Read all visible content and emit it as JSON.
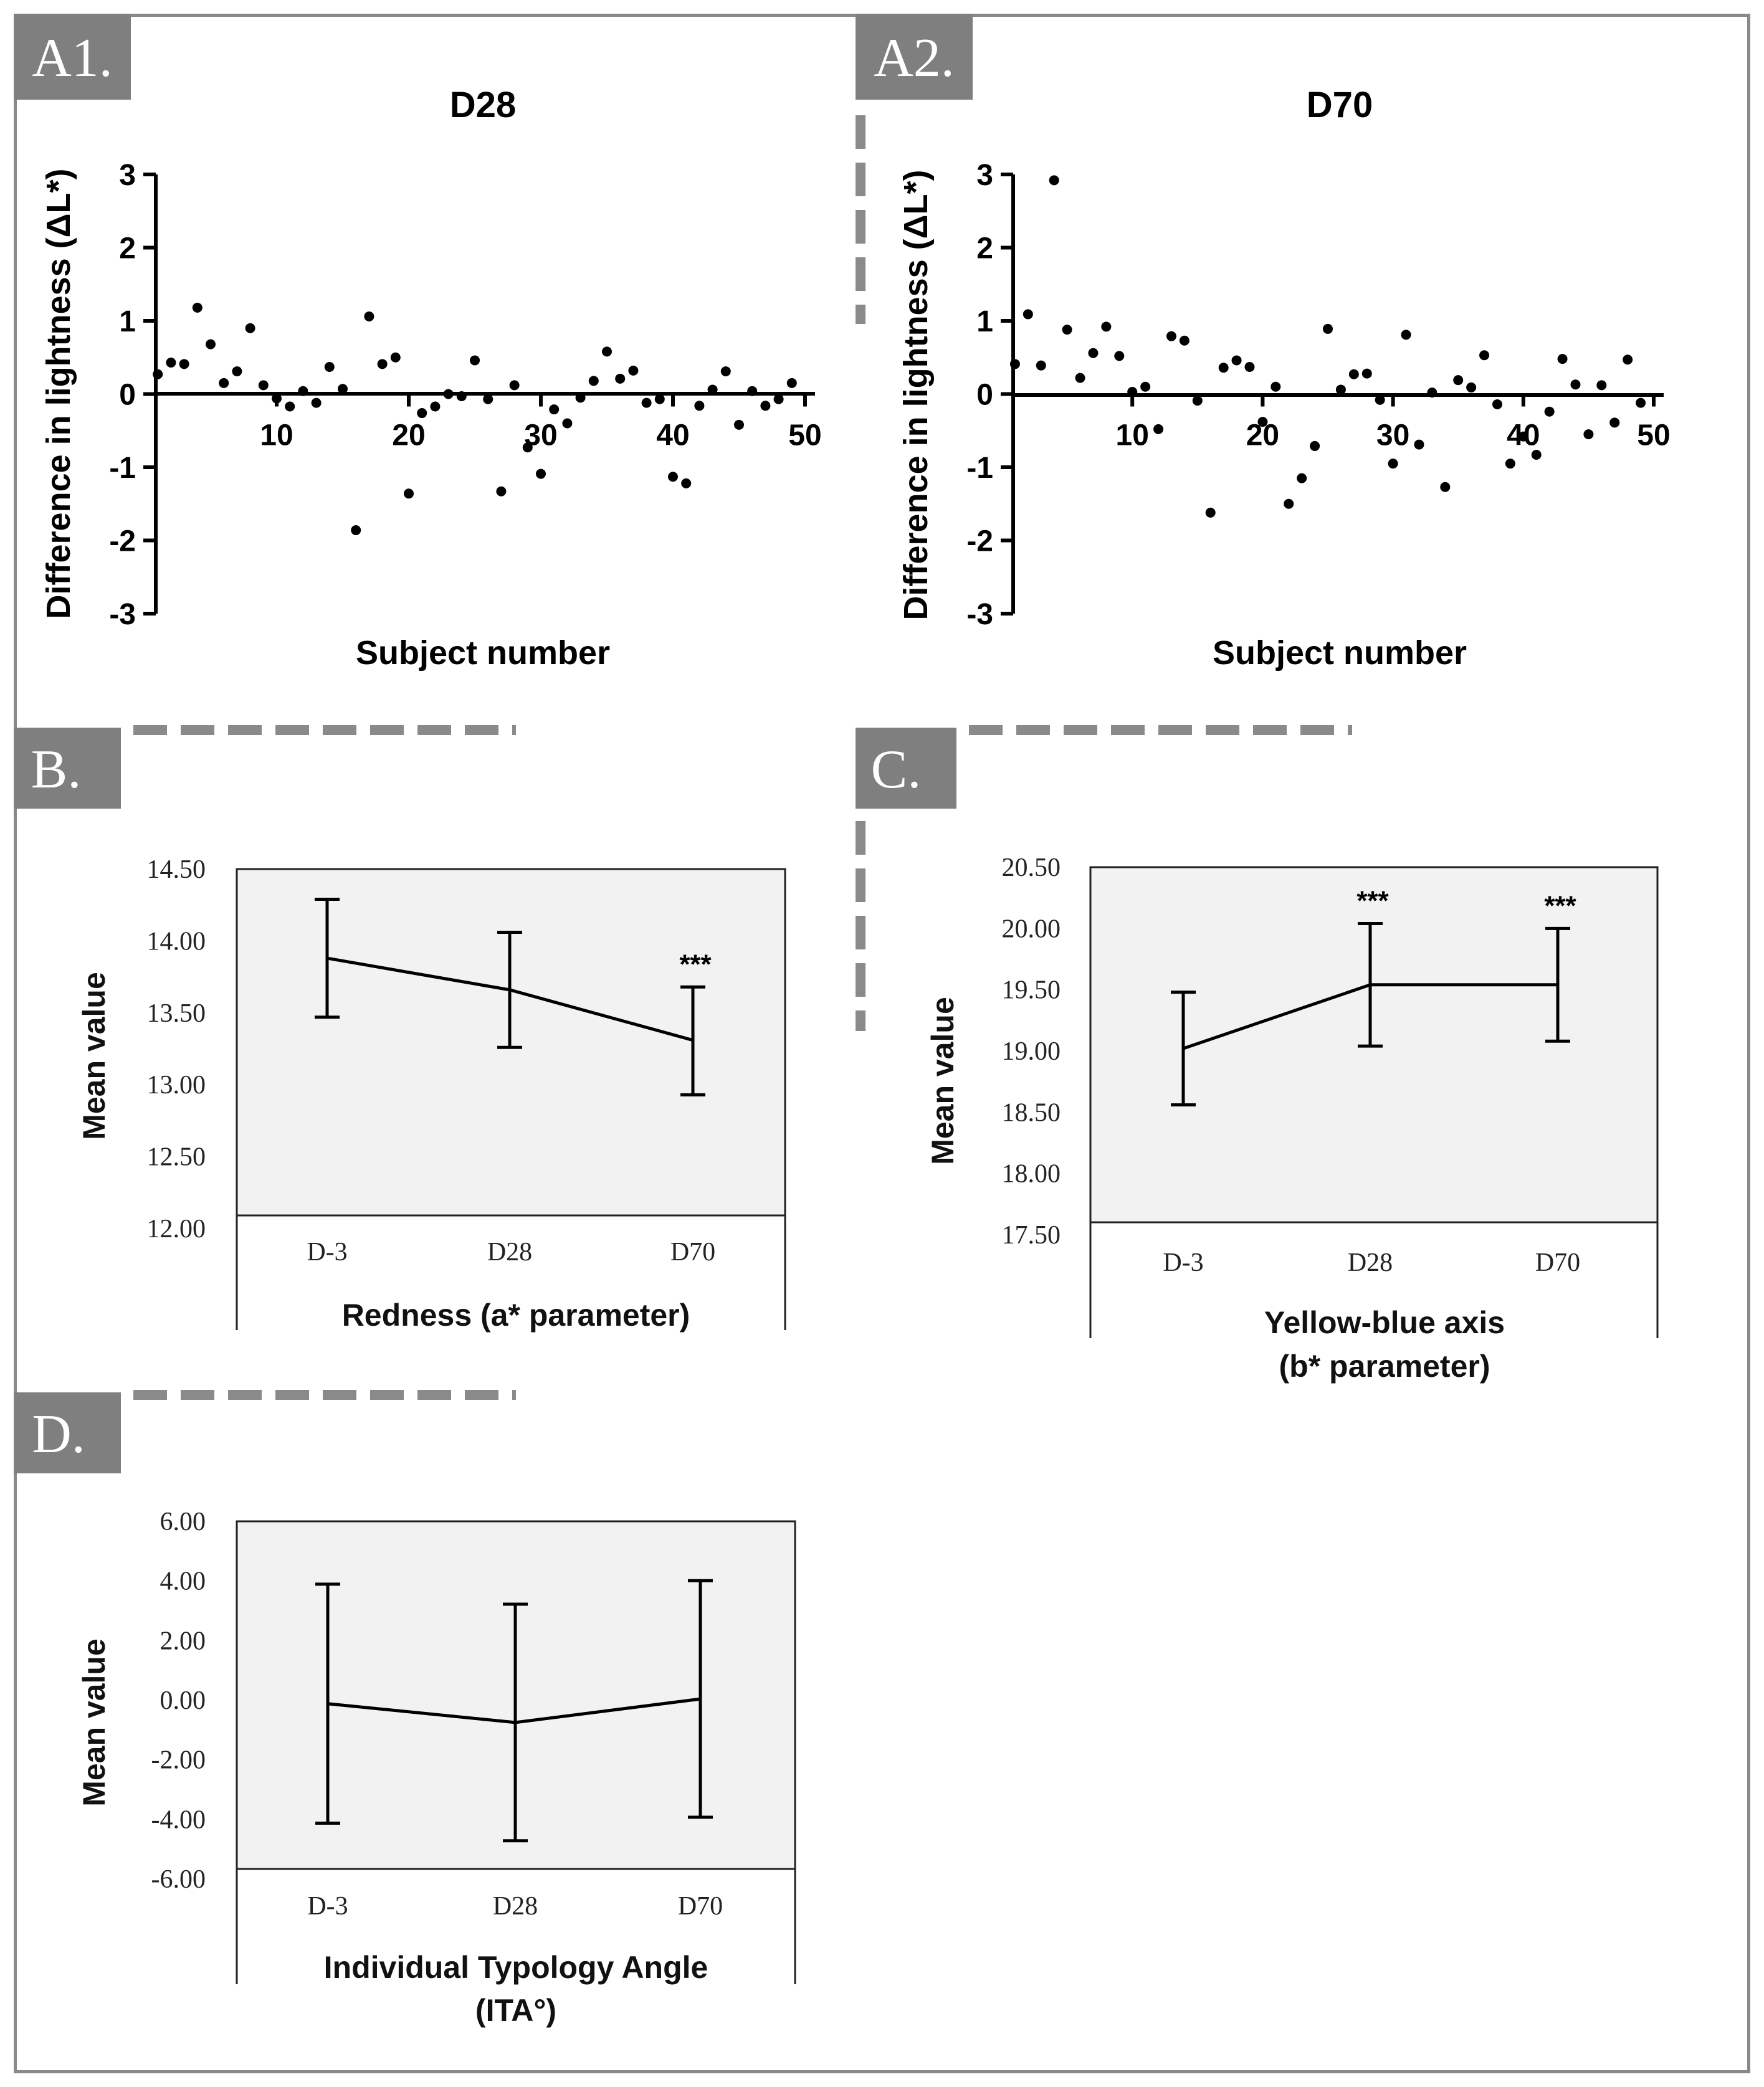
{
  "panels": {
    "a1": {
      "label": "A1.",
      "title": "D28"
    },
    "a2": {
      "label": "A2.",
      "title": "D70"
    },
    "b": {
      "label": "B."
    },
    "c": {
      "label": "C."
    },
    "d": {
      "label": "D."
    }
  },
  "colors": {
    "label_bg": "#7f7f7f",
    "plot_bg": "#f2f2f2",
    "frame": "#8a8a8a",
    "dash": "#8a8a8a"
  },
  "chart_data": [
    {
      "id": "a1",
      "type": "scatter",
      "title": "D28",
      "xlabel": "Subject number",
      "ylabel": "Difference in lightness (ΔL*)",
      "xlim": [
        0,
        50
      ],
      "ylim": [
        -3,
        3
      ],
      "xticks": [
        "10",
        "20",
        "30",
        "40",
        "50"
      ],
      "yticks": [
        "3",
        "2",
        "1",
        "0",
        "-1",
        "-2",
        "-3"
      ],
      "points": [
        [
          1,
          0.27
        ],
        [
          2,
          0.43
        ],
        [
          3,
          0.41
        ],
        [
          4,
          1.18
        ],
        [
          5,
          0.68
        ],
        [
          6,
          0.15
        ],
        [
          7,
          0.31
        ],
        [
          8,
          0.9
        ],
        [
          9,
          0.12
        ],
        [
          10,
          -0.06
        ],
        [
          11,
          -0.17
        ],
        [
          12,
          0.04
        ],
        [
          13,
          -0.12
        ],
        [
          14,
          0.37
        ],
        [
          15,
          0.07
        ],
        [
          16,
          -1.86
        ],
        [
          17,
          1.06
        ],
        [
          18,
          0.41
        ],
        [
          19,
          0.5
        ],
        [
          20,
          -1.36
        ],
        [
          21,
          -0.26
        ],
        [
          22,
          -0.17
        ],
        [
          23,
          0.0
        ],
        [
          24,
          -0.03
        ],
        [
          25,
          0.46
        ],
        [
          26,
          -0.07
        ],
        [
          27,
          -1.33
        ],
        [
          28,
          0.12
        ],
        [
          29,
          -0.73
        ],
        [
          30,
          -1.09
        ],
        [
          31,
          -0.21
        ],
        [
          32,
          -0.4
        ],
        [
          33,
          -0.05
        ],
        [
          34,
          0.18
        ],
        [
          35,
          0.58
        ],
        [
          36,
          0.21
        ],
        [
          37,
          0.32
        ],
        [
          38,
          -0.12
        ],
        [
          39,
          -0.07
        ],
        [
          40,
          -1.13
        ],
        [
          41,
          -1.22
        ],
        [
          42,
          -0.16
        ],
        [
          43,
          0.06
        ],
        [
          44,
          0.31
        ],
        [
          45,
          -0.42
        ],
        [
          46,
          0.04
        ],
        [
          47,
          -0.16
        ],
        [
          48,
          -0.07
        ],
        [
          49,
          0.15
        ]
      ]
    },
    {
      "id": "a2",
      "type": "scatter",
      "title": "D70",
      "xlabel": "Subject number",
      "ylabel": "Difference in lightness (ΔL*)",
      "xlim": [
        0,
        50
      ],
      "ylim": [
        -3,
        3
      ],
      "xticks": [
        "10",
        "20",
        "30",
        "40",
        "50"
      ],
      "yticks": [
        "3",
        "2",
        "1",
        "0",
        "-1",
        "-2",
        "-3"
      ],
      "points": [
        [
          1,
          0.41
        ],
        [
          2,
          1.09
        ],
        [
          3,
          0.39
        ],
        [
          4,
          2.92
        ],
        [
          5,
          0.88
        ],
        [
          6,
          0.22
        ],
        [
          7,
          0.56
        ],
        [
          8,
          0.92
        ],
        [
          9,
          0.52
        ],
        [
          10,
          0.03
        ],
        [
          11,
          0.1
        ],
        [
          12,
          -0.48
        ],
        [
          13,
          0.79
        ],
        [
          14,
          0.73
        ],
        [
          15,
          -0.09
        ],
        [
          16,
          -1.62
        ],
        [
          17,
          0.36
        ],
        [
          18,
          0.46
        ],
        [
          19,
          0.37
        ],
        [
          20,
          -0.38
        ],
        [
          21,
          0.1
        ],
        [
          22,
          -1.5
        ],
        [
          23,
          -1.15
        ],
        [
          24,
          -0.71
        ],
        [
          25,
          0.89
        ],
        [
          26,
          0.06
        ],
        [
          27,
          0.27
        ],
        [
          28,
          0.28
        ],
        [
          29,
          -0.08
        ],
        [
          30,
          -0.95
        ],
        [
          31,
          0.81
        ],
        [
          32,
          -0.69
        ],
        [
          33,
          0.02
        ],
        [
          34,
          -1.27
        ],
        [
          35,
          0.19
        ],
        [
          36,
          0.09
        ],
        [
          37,
          0.53
        ],
        [
          38,
          -0.14
        ],
        [
          39,
          -0.95
        ],
        [
          40,
          -0.58
        ],
        [
          41,
          -0.83
        ],
        [
          42,
          -0.24
        ],
        [
          43,
          0.48
        ],
        [
          44,
          0.13
        ],
        [
          45,
          -0.55
        ],
        [
          46,
          0.12
        ],
        [
          47,
          -0.39
        ],
        [
          48,
          0.47
        ],
        [
          49,
          -0.12
        ]
      ]
    },
    {
      "id": "b",
      "type": "line",
      "xlabel": [
        "Redness (a* parameter)"
      ],
      "ylabel": "Mean value",
      "categories": [
        "D-3",
        "D28",
        "D70"
      ],
      "ylim": [
        12.0,
        14.5
      ],
      "yticks": [
        "14.50",
        "14.00",
        "13.50",
        "13.00",
        "12.50",
        "12.00"
      ],
      "values": [
        13.88,
        13.66,
        13.31
      ],
      "err_upper": [
        14.29,
        14.06,
        13.68
      ],
      "err_lower": [
        13.47,
        13.26,
        12.93
      ],
      "significance": [
        "",
        "",
        "***"
      ]
    },
    {
      "id": "c",
      "type": "line",
      "xlabel": [
        "Yellow-blue axis",
        "(b* parameter)"
      ],
      "ylabel": "Mean value",
      "categories": [
        "D-3",
        "D28",
        "D70"
      ],
      "ylim": [
        17.5,
        20.5
      ],
      "yticks": [
        "20.50",
        "20.00",
        "19.50",
        "19.00",
        "18.50",
        "18.00",
        "17.50"
      ],
      "values": [
        19.02,
        19.54,
        19.54
      ],
      "err_upper": [
        19.48,
        20.04,
        20.0
      ],
      "err_lower": [
        18.56,
        19.04,
        19.08
      ],
      "significance": [
        "",
        "***",
        "***"
      ]
    },
    {
      "id": "d",
      "type": "line",
      "xlabel": [
        "Individual Typology Angle",
        "(ITA°)"
      ],
      "ylabel": "Mean value",
      "categories": [
        "D-3",
        "D28",
        "D70"
      ],
      "ylim": [
        -6.0,
        6.0
      ],
      "yticks": [
        "6.00",
        "4.00",
        "2.00",
        "0.00",
        "-2.00",
        "-4.00",
        "-6.00"
      ],
      "values": [
        -0.12,
        -0.75,
        0.04
      ],
      "err_upper": [
        3.89,
        3.22,
        4.01
      ],
      "err_lower": [
        -4.13,
        -4.72,
        -3.93
      ],
      "significance": [
        "",
        "",
        ""
      ]
    }
  ]
}
